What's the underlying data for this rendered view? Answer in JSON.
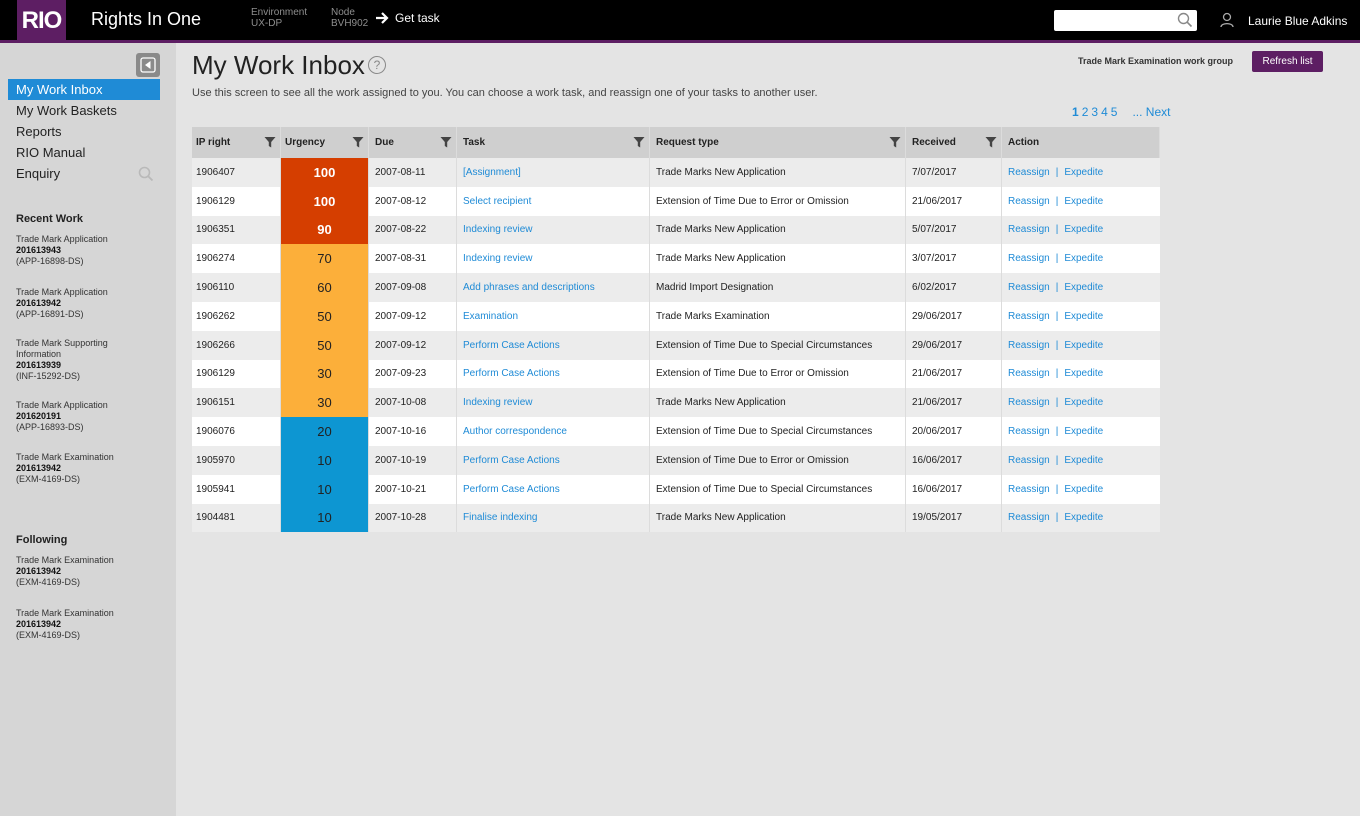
{
  "header": {
    "logo": "RIO",
    "app_title": "Rights In One",
    "environment_label": "Environment",
    "environment_value": "UX-DP",
    "node_label": "Node",
    "node_value": "BVH902",
    "get_task": "Get task",
    "search_placeholder": "",
    "user_name": "Laurie Blue Adkins",
    "icons": {
      "get_task": "arrow-right-icon",
      "search": "search-icon",
      "user": "user-icon"
    }
  },
  "colors": {
    "brand_purple": "#5d1e63",
    "accent_blue": "#1f8bd6",
    "urgency_high": "#d53e00",
    "urgency_medium": "#fcaf3a",
    "urgency_low": "#0d96d2"
  },
  "sidebar": {
    "collapse_icon": "collapse-left-icon",
    "nav": [
      {
        "label": "My Work Inbox",
        "active": true
      },
      {
        "label": "My Work Baskets"
      },
      {
        "label": "Reports"
      },
      {
        "label": "RIO Manual"
      },
      {
        "label": "Enquiry",
        "icon": "search-icon"
      }
    ],
    "recent_heading": "Recent Work",
    "recent": [
      {
        "title": "Trade Mark Application",
        "number": "201613943",
        "code": "(APP-16898-DS)"
      },
      {
        "title": "Trade Mark Application",
        "number": "201613942",
        "code": "(APP-16891-DS)"
      },
      {
        "title": "Trade Mark Supporting",
        "title2": "Information",
        "number": "201613939",
        "code": "(INF-15292-DS)"
      },
      {
        "title": "Trade Mark Application",
        "number": "201620191",
        "code": "(APP-16893-DS)"
      },
      {
        "title": "Trade Mark Examination",
        "number": "201613942",
        "code": "(EXM-4169-DS)"
      }
    ],
    "following_heading": "Following",
    "following": [
      {
        "title": "Trade Mark Examination",
        "number": "201613942",
        "code": "(EXM-4169-DS)"
      },
      {
        "title": "Trade Mark Examination",
        "number": "201613942",
        "code": "(EXM-4169-DS)"
      }
    ]
  },
  "main": {
    "title": "My Work Inbox",
    "help": "?",
    "intro": "Use this screen to see all the work assigned to you. You can choose a work task, and reassign one of your tasks to another user.",
    "workgroup": "Trade Mark Examination work group",
    "refresh": "Refresh list",
    "pager": {
      "pages": [
        "1",
        "2",
        "3",
        "4",
        "5"
      ],
      "current": "1",
      "next": "... Next"
    }
  },
  "table": {
    "columns": [
      "IP right",
      "Urgency",
      "Due",
      "Task",
      "Request type",
      "Received",
      "Action"
    ],
    "filter_icon": "filter-icon",
    "action_reassign": "Reassign",
    "action_separator": "|",
    "action_expedite": "Expedite",
    "rows": [
      {
        "ip": "1906407",
        "urgency": "100",
        "level": "high",
        "due": "2007-08-11",
        "task": "[Assignment]",
        "request": "Trade Marks New Application",
        "received": "7/07/2017"
      },
      {
        "ip": "1906129",
        "urgency": "100",
        "level": "high",
        "due": "2007-08-12",
        "task": "Select recipient",
        "request": "Extension of Time Due to Error or Omission",
        "received": "21/06/2017"
      },
      {
        "ip": "1906351",
        "urgency": "90",
        "level": "high",
        "due": "2007-08-22",
        "task": "Indexing review",
        "request": "Trade Marks New Application",
        "received": "5/07/2017"
      },
      {
        "ip": "1906274",
        "urgency": "70",
        "level": "medium",
        "due": "2007-08-31",
        "task": "Indexing review",
        "request": "Trade Marks New Application",
        "received": "3/07/2017"
      },
      {
        "ip": "1906110",
        "urgency": "60",
        "level": "medium",
        "due": "2007-09-08",
        "task": "Add phrases and descriptions",
        "request": "Madrid Import Designation",
        "received": "6/02/2017"
      },
      {
        "ip": "1906262",
        "urgency": "50",
        "level": "medium",
        "due": "2007-09-12",
        "task": "Examination",
        "request": "Trade Marks Examination",
        "received": "29/06/2017"
      },
      {
        "ip": "1906266",
        "urgency": "50",
        "level": "medium",
        "due": "2007-09-12",
        "task": "Perform Case Actions",
        "request": "Extension of Time Due to Special Circumstances",
        "received": "29/06/2017"
      },
      {
        "ip": "1906129",
        "urgency": "30",
        "level": "medium",
        "due": "2007-09-23",
        "task": "Perform Case Actions",
        "request": "Extension of Time Due to Error or Omission",
        "received": "21/06/2017"
      },
      {
        "ip": "1906151",
        "urgency": "30",
        "level": "medium",
        "due": "2007-10-08",
        "task": "Indexing review",
        "request": "Trade Marks New Application",
        "received": "21/06/2017"
      },
      {
        "ip": "1906076",
        "urgency": "20",
        "level": "low",
        "due": "2007-10-16",
        "task": "Author correspondence",
        "request": "Extension of Time Due to Special Circumstances",
        "received": "20/06/2017"
      },
      {
        "ip": "1905970",
        "urgency": "10",
        "level": "low",
        "due": "2007-10-19",
        "task": "Perform Case Actions",
        "request": "Extension of Time Due to Error or Omission",
        "received": "16/06/2017"
      },
      {
        "ip": "1905941",
        "urgency": "10",
        "level": "low",
        "due": "2007-10-21",
        "task": "Perform Case Actions",
        "request": "Extension of Time Due to Special Circumstances",
        "received": "16/06/2017"
      },
      {
        "ip": "1904481",
        "urgency": "10",
        "level": "low",
        "due": "2007-10-28",
        "task": "Finalise indexing",
        "request": "Trade Marks New Application",
        "received": "19/05/2017"
      }
    ]
  }
}
